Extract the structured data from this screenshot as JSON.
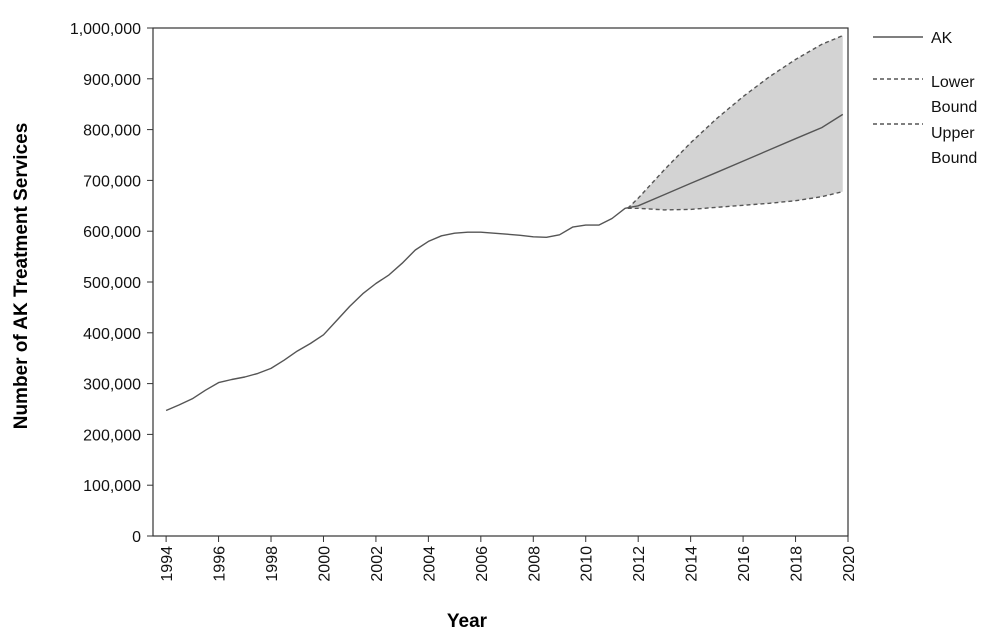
{
  "chart_data": {
    "type": "line",
    "title": "",
    "xlabel": "Year",
    "ylabel": "Number of AK Treatment Services",
    "xlim": [
      1993.5,
      2020
    ],
    "ylim": [
      0,
      1000000
    ],
    "x_ticks": [
      1994,
      1996,
      1998,
      2000,
      2002,
      2004,
      2006,
      2008,
      2010,
      2012,
      2014,
      2016,
      2018,
      2020
    ],
    "y_ticks": [
      0,
      100000,
      200000,
      300000,
      400000,
      500000,
      600000,
      700000,
      800000,
      900000,
      1000000
    ],
    "y_tick_labels": [
      "0",
      "100,000",
      "200,000",
      "300,000",
      "400,000",
      "500,000",
      "600,000",
      "700,000",
      "800,000",
      "900,000",
      "1,000,000"
    ],
    "grid": false,
    "legend_position": "right",
    "series": [
      {
        "name": "AK",
        "style": "solid",
        "color": "#555555",
        "x": [
          1994.0,
          1994.5,
          1995.0,
          1995.5,
          1996.0,
          1996.5,
          1997.0,
          1997.5,
          1998.0,
          1998.5,
          1999.0,
          1999.5,
          2000.0,
          2000.5,
          2001.0,
          2001.5,
          2002.0,
          2002.5,
          2003.0,
          2003.5,
          2004.0,
          2004.5,
          2005.0,
          2005.5,
          2006.0,
          2006.5,
          2007.0,
          2007.5,
          2008.0,
          2008.5,
          2009.0,
          2009.5,
          2010.0,
          2010.5,
          2011.0,
          2011.5,
          2012.0,
          2013.0,
          2014.0,
          2015.0,
          2016.0,
          2017.0,
          2018.0,
          2019.0,
          2019.8
        ],
        "y": [
          247000,
          258000,
          270000,
          287000,
          302000,
          308000,
          313000,
          320000,
          330000,
          346000,
          364000,
          379000,
          396000,
          424000,
          452000,
          477000,
          497000,
          514000,
          537000,
          563000,
          580000,
          591000,
          596000,
          598000,
          598000,
          596000,
          594000,
          592000,
          589000,
          588000,
          593000,
          608000,
          612000,
          612000,
          625000,
          645000,
          650000,
          672000,
          694000,
          716000,
          738000,
          760000,
          782000,
          804000,
          830000
        ]
      },
      {
        "name": "Lower Bound",
        "style": "dashed",
        "color": "#555555",
        "x": [
          2011.6,
          2012.0,
          2013.0,
          2014.0,
          2015.0,
          2016.0,
          2017.0,
          2018.0,
          2019.0,
          2019.8
        ],
        "y": [
          645000,
          645000,
          642000,
          643000,
          647000,
          651000,
          655000,
          660000,
          668000,
          678000
        ]
      },
      {
        "name": "Upper Bound",
        "style": "dashed",
        "color": "#555555",
        "x": [
          2011.6,
          2012.0,
          2013.0,
          2014.0,
          2015.0,
          2016.0,
          2017.0,
          2018.0,
          2019.0,
          2019.8
        ],
        "y": [
          645000,
          665000,
          721000,
          774000,
          822000,
          865000,
          904000,
          938000,
          968000,
          985000
        ]
      }
    ],
    "band": {
      "between": [
        "Lower Bound",
        "Upper Bound"
      ],
      "color": "#d3d3d3"
    }
  }
}
